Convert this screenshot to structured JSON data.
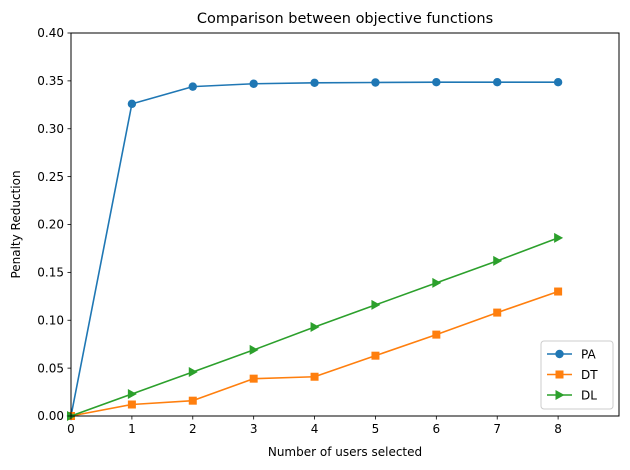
{
  "chart_data": {
    "type": "line",
    "title": "Comparison between objective functions",
    "xlabel": "Number of users selected",
    "ylabel": "Penalty Reduction",
    "x": [
      0,
      1,
      2,
      3,
      4,
      5,
      6,
      7,
      8
    ],
    "xlim": [
      0,
      9
    ],
    "ylim": [
      0,
      0.4
    ],
    "xticks": [
      "0",
      "1",
      "2",
      "3",
      "4",
      "5",
      "6",
      "7",
      "8"
    ],
    "yticks": [
      "0.00",
      "0.05",
      "0.10",
      "0.15",
      "0.20",
      "0.25",
      "0.30",
      "0.35",
      "0.40"
    ],
    "grid": false,
    "legend_position": "lower right",
    "series": [
      {
        "name": "PA",
        "color": "#1f77b4",
        "marker": "circle",
        "values": [
          0.0,
          0.326,
          0.344,
          0.347,
          0.348,
          0.3483,
          0.3486,
          0.3486,
          0.3486
        ]
      },
      {
        "name": "DT",
        "color": "#ff7f0e",
        "marker": "square",
        "values": [
          0.0,
          0.012,
          0.016,
          0.039,
          0.041,
          0.063,
          0.085,
          0.108,
          0.13
        ]
      },
      {
        "name": "DL",
        "color": "#2ca02c",
        "marker": "triangle-right",
        "values": [
          0.0,
          0.023,
          0.046,
          0.069,
          0.093,
          0.116,
          0.139,
          0.162,
          0.186
        ]
      }
    ]
  }
}
